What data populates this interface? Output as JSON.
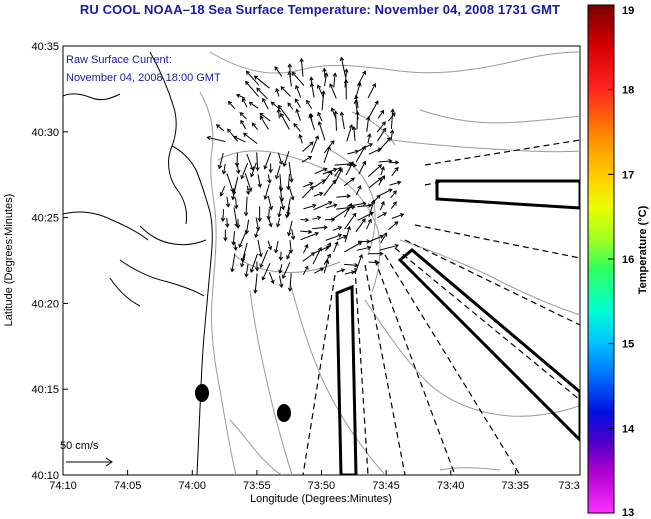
{
  "title": "RU COOL  NOAA–18  Sea Surface Temperature:  November 04, 2008 1731 GMT",
  "legend": {
    "line1": "Raw Surface Current:",
    "line2": "November 04, 2008 18:00 GMT"
  },
  "scale_label": "50 cm/s",
  "axes": {
    "xlabel": "Longitude (Degrees:Minutes)",
    "ylabel": "Latitude (Degrees:Minutes)",
    "x_ticks": [
      "74:10",
      "74:05",
      "74:00",
      "73:55",
      "73:50",
      "73:45",
      "73:40",
      "73:35",
      "73:3"
    ],
    "y_ticks": [
      "40:35",
      "40:30",
      "40:25",
      "40:20",
      "40:15",
      "40:10"
    ]
  },
  "colorbar": {
    "label": "Temperature (°C)",
    "min": 13,
    "max": 19,
    "ticks": [
      "19",
      "18",
      "17",
      "16",
      "15",
      "14",
      "13"
    ]
  },
  "colors": {
    "title": "#1a1aa6",
    "contour": "#9a9a9a",
    "coast": "#000000"
  }
}
